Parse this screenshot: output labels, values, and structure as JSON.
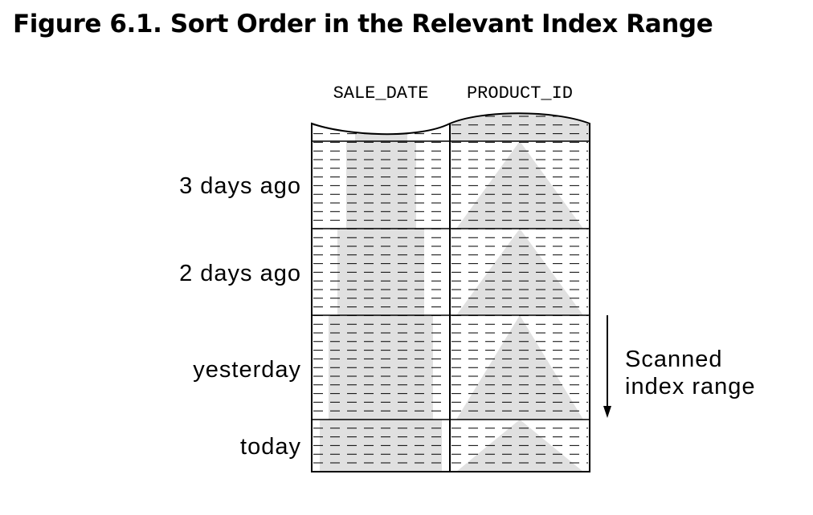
{
  "figure": {
    "title": "Figure 6.1. Sort Order in the Relevant Index Range"
  },
  "index": {
    "columns": [
      "SALE_DATE",
      "PRODUCT_ID"
    ],
    "rows": [
      {
        "label": "3 days ago"
      },
      {
        "label": "2 days ago"
      },
      {
        "label": "yesterday"
      },
      {
        "label": "today"
      }
    ]
  },
  "annotation": {
    "line1": "Scanned",
    "line2": "index range"
  },
  "colors": {
    "shade": "#e0e0e0",
    "ink": "#000000"
  }
}
